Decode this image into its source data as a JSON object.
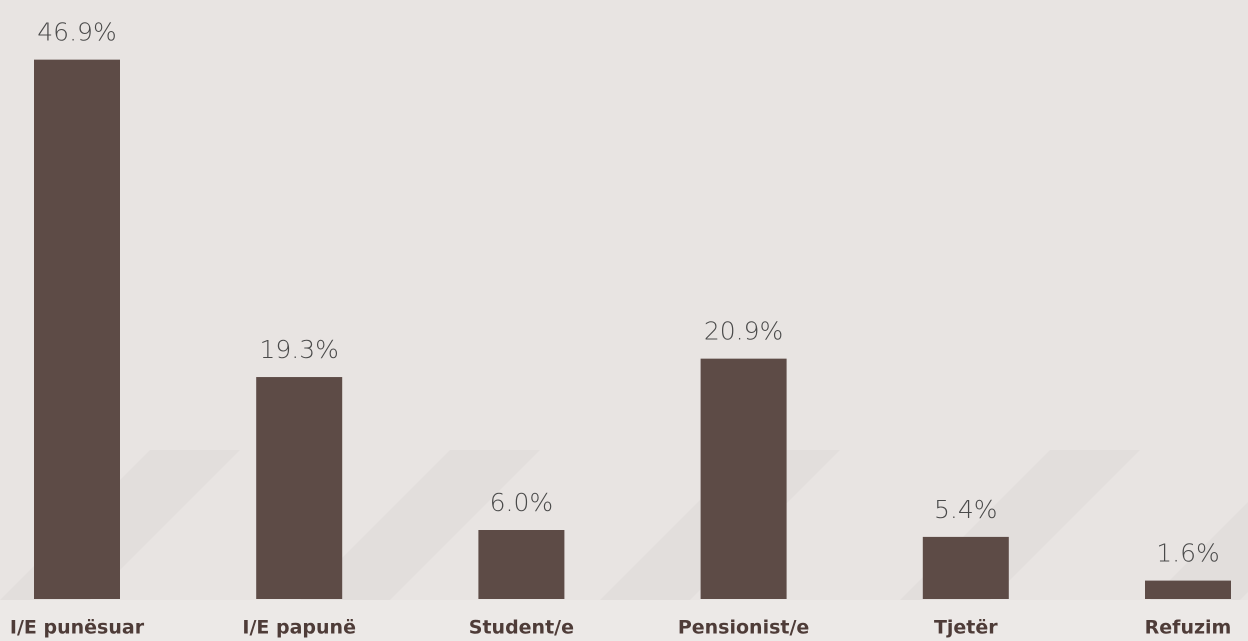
{
  "chart_data": {
    "type": "bar",
    "categories": [
      "I/E punësuar",
      "I/E papunë",
      "Student/e",
      "Pensionist/e",
      "Tjetër",
      "Refuzim"
    ],
    "values": [
      46.9,
      19.3,
      6.0,
      20.9,
      5.4,
      1.6
    ],
    "value_labels": [
      "46.9%",
      "19.3%",
      "6.0%",
      "20.9%",
      "5.4%",
      "1.6%"
    ],
    "color": "#5d4b46",
    "ylim": [
      0,
      50
    ]
  }
}
